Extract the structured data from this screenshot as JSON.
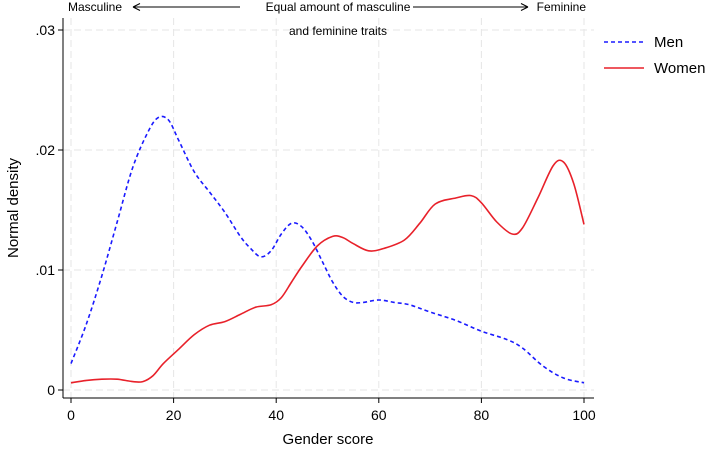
{
  "chart_data": {
    "type": "line",
    "xlabel": "Gender score",
    "ylabel": "Normal density",
    "xlim": [
      0,
      100
    ],
    "ylim": [
      0,
      0.03
    ],
    "x_ticks": [
      0,
      20,
      40,
      60,
      80,
      100
    ],
    "x_tick_labels": [
      "0",
      "20",
      "40",
      "60",
      "80",
      "100"
    ],
    "y_ticks": [
      0,
      0.01,
      0.02,
      0.03
    ],
    "y_tick_labels": [
      "0",
      ".01",
      ".02",
      ".03"
    ],
    "grid": true,
    "legend_position": "right",
    "annotations": {
      "left_label": "Masculine",
      "center_label_line1": "Equal amount of masculine",
      "center_label_line2": "and feminine traits",
      "right_label": "Feminine"
    },
    "series": [
      {
        "name": "Men",
        "color": "#1a1aff",
        "style": "dashed",
        "x": [
          0,
          3,
          6,
          9,
          12,
          15,
          17,
          19,
          21,
          24,
          27,
          30,
          33,
          35,
          37,
          39,
          41,
          43,
          45,
          47,
          49,
          51,
          53,
          55,
          57,
          60,
          63,
          66,
          70,
          75,
          80,
          85,
          88,
          92,
          96,
          100
        ],
        "y": [
          0.0022,
          0.0055,
          0.0095,
          0.014,
          0.0185,
          0.0215,
          0.0227,
          0.0225,
          0.0208,
          0.0182,
          0.0165,
          0.0148,
          0.0128,
          0.0118,
          0.0111,
          0.0116,
          0.013,
          0.0139,
          0.0136,
          0.0124,
          0.0107,
          0.009,
          0.0078,
          0.0073,
          0.0073,
          0.0075,
          0.0073,
          0.0071,
          0.0065,
          0.0058,
          0.0049,
          0.0042,
          0.0035,
          0.002,
          0.001,
          0.0006
        ]
      },
      {
        "name": "Women",
        "color": "#e8212a",
        "style": "solid",
        "x": [
          0,
          3,
          6,
          9,
          12,
          14,
          16,
          18,
          21,
          24,
          27,
          30,
          33,
          36,
          39,
          41,
          43,
          45,
          48,
          51,
          53,
          55,
          58,
          61,
          65,
          68,
          71,
          75,
          78,
          80,
          83,
          86,
          88,
          91,
          94,
          96,
          98,
          100
        ],
        "y": [
          0.0006,
          0.0008,
          0.0009,
          0.0009,
          0.0007,
          0.0007,
          0.0012,
          0.0022,
          0.0034,
          0.0046,
          0.0054,
          0.0057,
          0.0063,
          0.0069,
          0.0071,
          0.0077,
          0.009,
          0.0103,
          0.012,
          0.0128,
          0.0127,
          0.0122,
          0.0116,
          0.0118,
          0.0125,
          0.0139,
          0.0155,
          0.016,
          0.0162,
          0.0156,
          0.014,
          0.013,
          0.0135,
          0.016,
          0.0187,
          0.019,
          0.0172,
          0.0138
        ]
      }
    ]
  }
}
